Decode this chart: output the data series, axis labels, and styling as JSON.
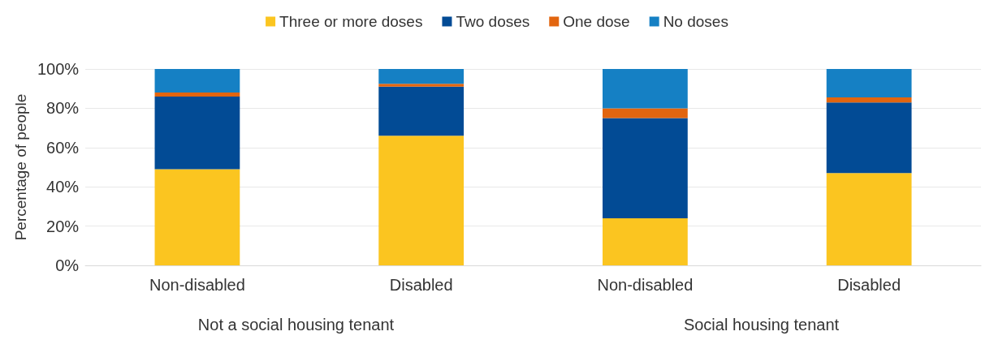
{
  "chart_data": {
    "type": "bar",
    "stacked": true,
    "ylabel": "Percentage of people",
    "categories": [
      "Non-disabled",
      "Disabled",
      "Non-disabled",
      "Disabled"
    ],
    "annotations": [
      "Not a social housing tenant",
      "Social housing tenant"
    ],
    "series": [
      {
        "name": "Three or more doses",
        "color": "#fbc520",
        "values": [
          49,
          66,
          24,
          47
        ]
      },
      {
        "name": "Two doses",
        "color": "#024b95",
        "values": [
          37,
          25,
          51,
          36
        ]
      },
      {
        "name": "One dose",
        "color": "#e2650f",
        "values": [
          2,
          1.5,
          5,
          2.5
        ]
      },
      {
        "name": "No doses",
        "color": "#1580c4",
        "values": [
          12,
          7.5,
          20,
          14.5
        ]
      }
    ],
    "ylim": [
      0,
      100
    ],
    "yticks": [
      {
        "value": 0,
        "label": "0%"
      },
      {
        "value": 20,
        "label": "20%"
      },
      {
        "value": 40,
        "label": "40%"
      },
      {
        "value": 60,
        "label": "60%"
      },
      {
        "value": 80,
        "label": "80%"
      },
      {
        "value": 100,
        "label": "100%"
      }
    ],
    "grid": "y",
    "legend": "top"
  }
}
